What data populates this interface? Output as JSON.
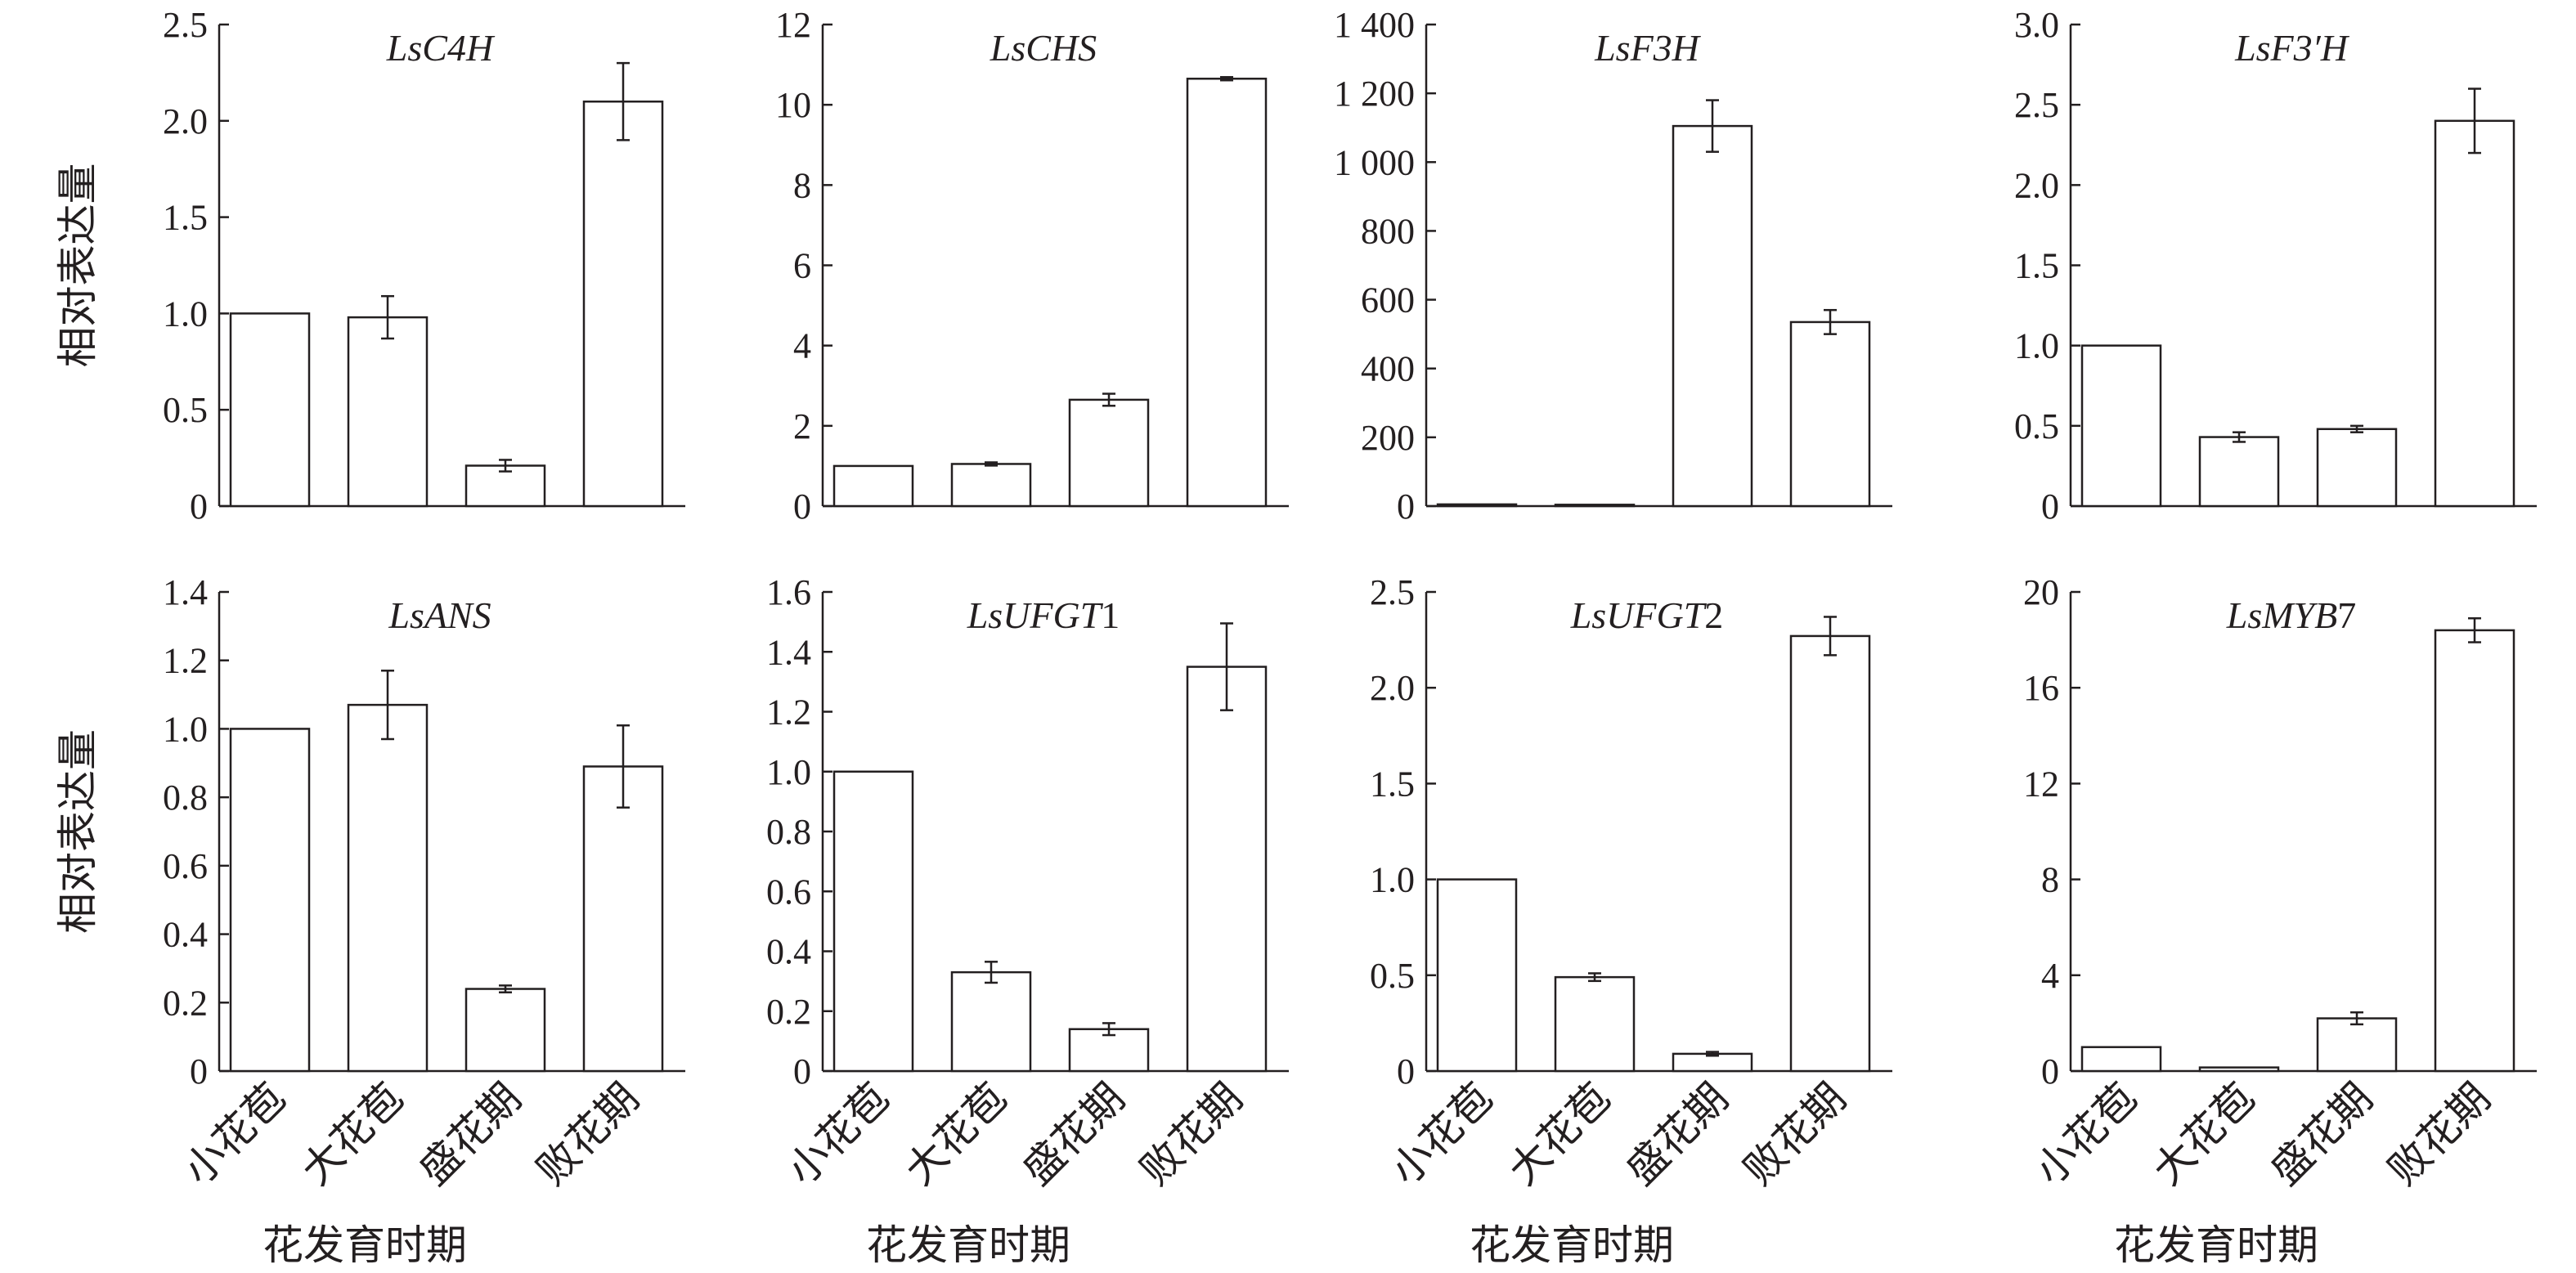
{
  "figure": {
    "y_axis_label": "相对表达量",
    "x_axis_label": "花发育时期"
  },
  "chart_data": [
    {
      "type": "bar",
      "title_italic": "LsC4H",
      "title_plain": "",
      "categories": [
        "小花苞",
        "大花苞",
        "盛花期",
        "败花期"
      ],
      "values": [
        1.0,
        0.98,
        0.21,
        2.1
      ],
      "errors": [
        0,
        0.11,
        0.03,
        0.2
      ],
      "ylim": [
        0,
        2.5
      ],
      "yticks": [
        0,
        0.5,
        1.0,
        1.5,
        2.0,
        2.5
      ],
      "ytick_labels": [
        "0",
        "0.5",
        "1.0",
        "1.5",
        "2.0",
        "2.5"
      ],
      "show_ylabel": true,
      "show_xticklabels": false
    },
    {
      "type": "bar",
      "title_italic": "LsCHS",
      "title_plain": "",
      "categories": [
        "小花苞",
        "大花苞",
        "盛花期",
        "败花期"
      ],
      "values": [
        1.0,
        1.05,
        2.65,
        10.65
      ],
      "errors": [
        0,
        0.04,
        0.15,
        0.04
      ],
      "ylim": [
        0,
        12
      ],
      "yticks": [
        0,
        2,
        4,
        6,
        8,
        10,
        12
      ],
      "ytick_labels": [
        "0",
        "2",
        "4",
        "6",
        "8",
        "10",
        "12"
      ],
      "show_ylabel": false,
      "show_xticklabels": false
    },
    {
      "type": "bar",
      "title_italic": "LsF3H",
      "title_plain": "",
      "categories": [
        "小花苞",
        "大花苞",
        "盛花期",
        "败花期"
      ],
      "values": [
        5,
        4,
        1105,
        535
      ],
      "errors": [
        0,
        0,
        75,
        35
      ],
      "ylim": [
        0,
        1400
      ],
      "yticks": [
        0,
        200,
        400,
        600,
        800,
        1000,
        1200,
        1400
      ],
      "ytick_labels": [
        "0",
        "200",
        "400",
        "600",
        "800",
        "1 000",
        "1 200",
        "1 400"
      ],
      "show_ylabel": false,
      "show_xticklabels": false
    },
    {
      "type": "bar",
      "title_italic": "LsF3′H",
      "title_plain": "",
      "categories": [
        "小花苞",
        "大花苞",
        "盛花期",
        "败花期"
      ],
      "values": [
        1.0,
        0.43,
        0.48,
        2.4
      ],
      "errors": [
        0,
        0.03,
        0.02,
        0.2
      ],
      "ylim": [
        0,
        3.0
      ],
      "yticks": [
        0,
        0.5,
        1.0,
        1.5,
        2.0,
        2.5,
        3.0
      ],
      "ytick_labels": [
        "0",
        "0.5",
        "1.0",
        "1.5",
        "2.0",
        "2.5",
        "3.0"
      ],
      "show_ylabel": false,
      "show_xticklabels": false
    },
    {
      "type": "bar",
      "title_italic": "LsANS",
      "title_plain": "",
      "categories": [
        "小花苞",
        "大花苞",
        "盛花期",
        "败花期"
      ],
      "values": [
        1.0,
        1.07,
        0.24,
        0.89
      ],
      "errors": [
        0,
        0.1,
        0.01,
        0.12
      ],
      "ylim": [
        0,
        1.4
      ],
      "yticks": [
        0,
        0.2,
        0.4,
        0.6,
        0.8,
        1.0,
        1.2,
        1.4
      ],
      "ytick_labels": [
        "0",
        "0.2",
        "0.4",
        "0.6",
        "0.8",
        "1.0",
        "1.2",
        "1.4"
      ],
      "show_ylabel": true,
      "show_xticklabels": true
    },
    {
      "type": "bar",
      "title_italic": "LsUFGT",
      "title_plain": "1",
      "categories": [
        "小花苞",
        "大花苞",
        "盛花期",
        "败花期"
      ],
      "values": [
        1.0,
        0.33,
        0.14,
        1.35
      ],
      "errors": [
        0,
        0.035,
        0.02,
        0.145
      ],
      "ylim": [
        0,
        1.6
      ],
      "yticks": [
        0,
        0.2,
        0.4,
        0.6,
        0.8,
        1.0,
        1.2,
        1.4,
        1.6
      ],
      "ytick_labels": [
        "0",
        "0.2",
        "0.4",
        "0.6",
        "0.8",
        "1.0",
        "1.2",
        "1.4",
        "1.6"
      ],
      "show_ylabel": false,
      "show_xticklabels": true
    },
    {
      "type": "bar",
      "title_italic": "LsUFGT",
      "title_plain": "2",
      "categories": [
        "小花苞",
        "大花苞",
        "盛花期",
        "败花期"
      ],
      "values": [
        1.0,
        0.49,
        0.09,
        2.27
      ],
      "errors": [
        0,
        0.02,
        0.01,
        0.1
      ],
      "ylim": [
        0,
        2.5
      ],
      "yticks": [
        0,
        0.5,
        1.0,
        1.5,
        2.0,
        2.5
      ],
      "ytick_labels": [
        "0",
        "0.5",
        "1.0",
        "1.5",
        "2.0",
        "2.5"
      ],
      "show_ylabel": false,
      "show_xticklabels": true
    },
    {
      "type": "bar",
      "title_italic": "LsMYB",
      "title_plain": "7",
      "categories": [
        "小花苞",
        "大花苞",
        "盛花期",
        "败花期"
      ],
      "values": [
        1.0,
        0.15,
        2.2,
        18.4
      ],
      "errors": [
        0,
        0,
        0.25,
        0.5
      ],
      "ylim": [
        0,
        20
      ],
      "yticks": [
        0,
        4,
        8,
        12,
        16,
        20
      ],
      "ytick_labels": [
        "0",
        "4",
        "8",
        "12",
        "16",
        "20"
      ],
      "show_ylabel": false,
      "show_xticklabels": true
    }
  ]
}
